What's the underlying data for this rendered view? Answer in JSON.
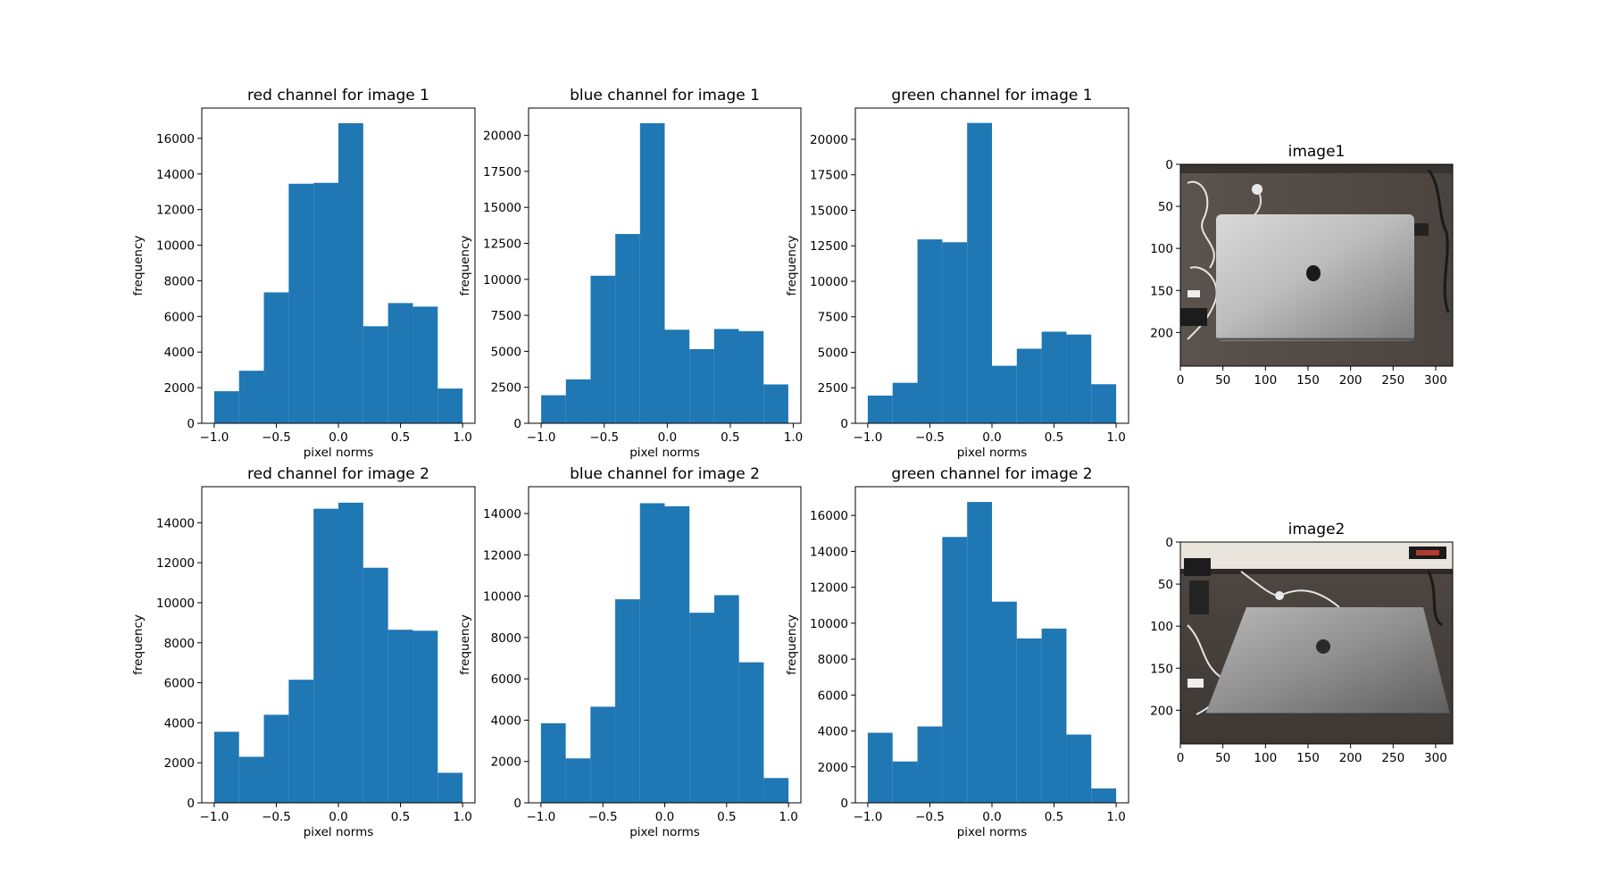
{
  "colors": {
    "bar": "#1f77b4",
    "axis": "#000000",
    "background": "#ffffff"
  },
  "chart_data": [
    {
      "type": "bar",
      "title": "red channel for image 1",
      "xlabel": "pixel norms",
      "ylabel": "frequency",
      "xlim": [
        -1.1,
        1.1
      ],
      "ylim": [
        0,
        17700
      ],
      "bin_edges": [
        -1.0,
        -0.8,
        -0.6,
        -0.4,
        -0.2,
        0.0,
        0.2,
        0.4,
        0.6,
        0.8,
        1.0
      ],
      "values": [
        1800,
        2950,
        7350,
        13450,
        13500,
        16850,
        5450,
        6750,
        6550,
        1950
      ],
      "xticks": [
        "−1.0",
        "−0.5",
        "0.0",
        "0.5",
        "1.0"
      ],
      "xtick_values": [
        -1.0,
        -0.5,
        0.0,
        0.5,
        1.0
      ],
      "yticks": [
        "0",
        "2000",
        "4000",
        "6000",
        "8000",
        "10000",
        "12000",
        "14000",
        "16000"
      ],
      "ytick_values": [
        0,
        2000,
        4000,
        6000,
        8000,
        10000,
        12000,
        14000,
        16000
      ]
    },
    {
      "type": "bar",
      "title": "blue channel for image 1",
      "xlabel": "pixel norms",
      "ylabel": "frequency",
      "xlim": [
        -1.1,
        1.06
      ],
      "ylim": [
        0,
        21900
      ],
      "bin_edges": [
        -1.0,
        -0.804,
        -0.608,
        -0.412,
        -0.216,
        -0.02,
        0.176,
        0.372,
        0.568,
        0.764,
        0.96
      ],
      "values": [
        1950,
        3050,
        10250,
        13150,
        20850,
        6500,
        5150,
        6550,
        6400,
        2700
      ],
      "xticks": [
        "−1.0",
        "−0.5",
        "0.0",
        "0.5",
        "1.0"
      ],
      "xtick_values": [
        -1.0,
        -0.5,
        0.0,
        0.5,
        1.0
      ],
      "yticks": [
        "0",
        "2500",
        "5000",
        "7500",
        "10000",
        "12500",
        "15000",
        "17500",
        "20000"
      ],
      "ytick_values": [
        0,
        2500,
        5000,
        7500,
        10000,
        12500,
        15000,
        17500,
        20000
      ]
    },
    {
      "type": "bar",
      "title": "green channel for image 1",
      "xlabel": "pixel norms",
      "ylabel": "frequency",
      "xlim": [
        -1.1,
        1.1
      ],
      "ylim": [
        0,
        22200
      ],
      "bin_edges": [
        -1.0,
        -0.8,
        -0.6,
        -0.4,
        -0.2,
        0.0,
        0.2,
        0.4,
        0.6,
        0.8,
        1.0
      ],
      "values": [
        1950,
        2850,
        12950,
        12750,
        21150,
        4050,
        5250,
        6450,
        6250,
        2750
      ],
      "xticks": [
        "−1.0",
        "−0.5",
        "0.0",
        "0.5",
        "1.0"
      ],
      "xtick_values": [
        -1.0,
        -0.5,
        0.0,
        0.5,
        1.0
      ],
      "yticks": [
        "0",
        "2500",
        "5000",
        "7500",
        "10000",
        "12500",
        "15000",
        "17500",
        "20000"
      ],
      "ytick_values": [
        0,
        2500,
        5000,
        7500,
        10000,
        12500,
        15000,
        17500,
        20000
      ]
    },
    {
      "type": "bar",
      "title": "red channel for image 2",
      "xlabel": "pixel norms",
      "ylabel": "frequency",
      "xlim": [
        -1.1,
        1.1
      ],
      "ylim": [
        0,
        15800
      ],
      "bin_edges": [
        -1.0,
        -0.8,
        -0.6,
        -0.4,
        -0.2,
        0.0,
        0.2,
        0.4,
        0.6,
        0.8,
        1.0
      ],
      "values": [
        3550,
        2300,
        4400,
        6150,
        14700,
        15000,
        11750,
        8650,
        8600,
        1500
      ],
      "xticks": [
        "−1.0",
        "−0.5",
        "0.0",
        "0.5",
        "1.0"
      ],
      "xtick_values": [
        -1.0,
        -0.5,
        0.0,
        0.5,
        1.0
      ],
      "yticks": [
        "0",
        "2000",
        "4000",
        "6000",
        "8000",
        "10000",
        "12000",
        "14000"
      ],
      "ytick_values": [
        0,
        2000,
        4000,
        6000,
        8000,
        10000,
        12000,
        14000
      ]
    },
    {
      "type": "bar",
      "title": "blue channel for image 2",
      "xlabel": "pixel norms",
      "ylabel": "frequency",
      "xlim": [
        -1.1,
        1.1
      ],
      "ylim": [
        0,
        15300
      ],
      "bin_edges": [
        -1.0,
        -0.8,
        -0.6,
        -0.4,
        -0.2,
        0.0,
        0.2,
        0.4,
        0.6,
        0.8,
        1.0
      ],
      "values": [
        3850,
        2150,
        4650,
        9850,
        14500,
        14350,
        9200,
        10050,
        6800,
        1200
      ],
      "xticks": [
        "−1.0",
        "−0.5",
        "0.0",
        "0.5",
        "1.0"
      ],
      "xtick_values": [
        -1.0,
        -0.5,
        0.0,
        0.5,
        1.0
      ],
      "yticks": [
        "0",
        "2000",
        "4000",
        "6000",
        "8000",
        "10000",
        "12000",
        "14000"
      ],
      "ytick_values": [
        0,
        2000,
        4000,
        6000,
        8000,
        10000,
        12000,
        14000
      ]
    },
    {
      "type": "bar",
      "title": "green channel for image 2",
      "xlabel": "pixel norms",
      "ylabel": "frequency",
      "xlim": [
        -1.1,
        1.1
      ],
      "ylim": [
        0,
        17600
      ],
      "bin_edges": [
        -1.0,
        -0.8,
        -0.6,
        -0.4,
        -0.2,
        0.0,
        0.2,
        0.4,
        0.6,
        0.8,
        1.0
      ],
      "values": [
        3900,
        2300,
        4250,
        14800,
        16750,
        11200,
        9150,
        9700,
        3800,
        800
      ],
      "xticks": [
        "−1.0",
        "−0.5",
        "0.0",
        "0.5",
        "1.0"
      ],
      "xtick_values": [
        -1.0,
        -0.5,
        0.0,
        0.5,
        1.0
      ],
      "yticks": [
        "0",
        "2000",
        "4000",
        "6000",
        "8000",
        "10000",
        "12000",
        "14000",
        "16000"
      ],
      "ytick_values": [
        0,
        2000,
        4000,
        6000,
        8000,
        10000,
        12000,
        14000,
        16000
      ]
    }
  ],
  "images": [
    {
      "title": "image1",
      "xlim": [
        0,
        320
      ],
      "ylim": [
        0,
        240
      ],
      "xticks": [
        "0",
        "50",
        "100",
        "150",
        "200",
        "250",
        "300"
      ],
      "xtick_values": [
        0,
        50,
        100,
        150,
        200,
        250,
        300
      ],
      "yticks": [
        "0",
        "50",
        "100",
        "150",
        "200"
      ],
      "ytick_values": [
        0,
        50,
        100,
        150,
        200
      ]
    },
    {
      "title": "image2",
      "xlim": [
        0,
        320
      ],
      "ylim": [
        0,
        240
      ],
      "xticks": [
        "0",
        "50",
        "100",
        "150",
        "200",
        "250",
        "300"
      ],
      "xtick_values": [
        0,
        50,
        100,
        150,
        200,
        250,
        300
      ],
      "yticks": [
        "0",
        "50",
        "100",
        "150",
        "200"
      ],
      "ytick_values": [
        0,
        50,
        100,
        150,
        200
      ]
    }
  ]
}
